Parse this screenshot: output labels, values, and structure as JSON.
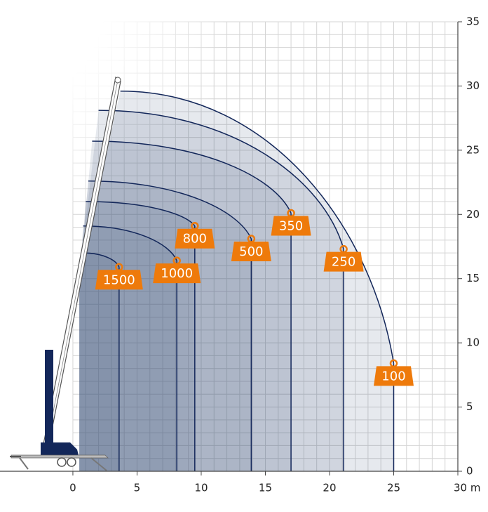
{
  "chart_data": {
    "type": "load-chart",
    "xlim": [
      -5.68,
      30
    ],
    "ylim": [
      0,
      35
    ],
    "xticks": [
      0,
      5,
      10,
      15,
      20,
      25,
      {
        "value": 30,
        "label": "30 m"
      }
    ],
    "yticks": [
      0,
      5,
      10,
      15,
      20,
      25,
      30,
      35
    ],
    "grid": true,
    "line_color": "#13275a",
    "marker_color": "#ee7a0b",
    "series": [
      {
        "name": "100",
        "x": [
          3.7,
          25
        ],
        "values": [
          29.6,
          8.4
        ]
      },
      {
        "name": "250",
        "x": [
          2.0,
          21.1
        ],
        "values": [
          28.1,
          17.3
        ]
      },
      {
        "name": "350",
        "x": [
          1.5,
          17
        ],
        "values": [
          25.7,
          20.1
        ]
      },
      {
        "name": "500",
        "x": [
          1.2,
          13.9
        ],
        "values": [
          22.6,
          18.1
        ]
      },
      {
        "name": "800",
        "x": [
          1.0,
          9.5
        ],
        "values": [
          21,
          19.1
        ]
      },
      {
        "name": "1000",
        "x": [
          0.8,
          8.1
        ],
        "values": [
          19.1,
          16.4
        ]
      },
      {
        "name": "1500",
        "x": [
          0.8,
          3.6
        ],
        "values": [
          17,
          15.9
        ]
      }
    ]
  }
}
